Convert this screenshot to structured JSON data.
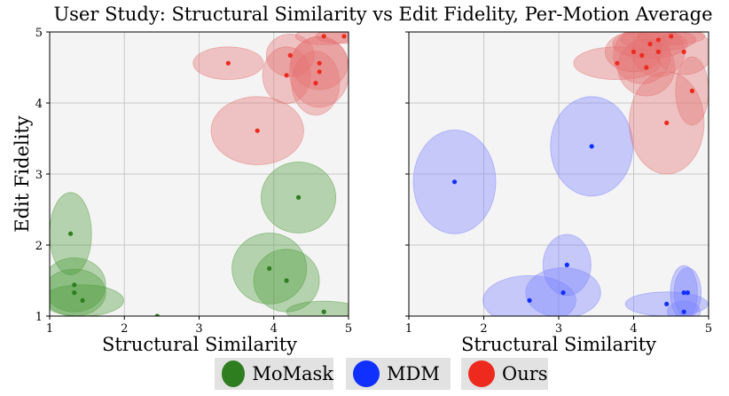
{
  "chart_data": {
    "type": "scatter",
    "title": "User Study: Structural Similarity vs Edit Fidelity, Per-Motion Average",
    "xlabel": "Structural Similarity",
    "ylabel": "Edit Fidelity",
    "xlim": [
      1,
      5
    ],
    "ylim": [
      1,
      5
    ],
    "xticks": [
      "1",
      "2",
      "3",
      "4",
      "5"
    ],
    "yticks": [
      "1",
      "2",
      "3",
      "4",
      "5"
    ],
    "grid": true,
    "legend_position": "bottom",
    "legend": [
      {
        "name": "MoMask",
        "color": "#2e7d1f"
      },
      {
        "name": "MDM",
        "color": "#1030ff"
      },
      {
        "name": "Ours",
        "color": "#ee2a1e"
      }
    ],
    "panels": [
      {
        "series": [
          {
            "name": "MoMask",
            "color": "#2e7d1f",
            "fill": "#4d9a3a",
            "points": [
              {
                "x": 1.28,
                "y": 2.16,
                "sx": 0.28,
                "sy": 0.58
              },
              {
                "x": 1.33,
                "y": 1.44,
                "sx": 0.42,
                "sy": 0.38
              },
              {
                "x": 1.33,
                "y": 1.33,
                "sx": 0.42,
                "sy": 0.33
              },
              {
                "x": 1.44,
                "y": 1.22,
                "sx": 0.55,
                "sy": 0.22
              },
              {
                "x": 2.44,
                "y": 1.0,
                "sx": 0.0,
                "sy": 0.0
              },
              {
                "x": 3.94,
                "y": 1.67,
                "sx": 0.5,
                "sy": 0.5
              },
              {
                "x": 4.17,
                "y": 1.5,
                "sx": 0.44,
                "sy": 0.44
              },
              {
                "x": 4.33,
                "y": 2.67,
                "sx": 0.5,
                "sy": 0.5
              },
              {
                "x": 4.67,
                "y": 1.06,
                "sx": 0.5,
                "sy": 0.15
              }
            ]
          },
          {
            "name": "Ours",
            "color": "#ee2a1e",
            "fill": "#e57070",
            "points": [
              {
                "x": 3.39,
                "y": 4.56,
                "sx": 0.47,
                "sy": 0.23
              },
              {
                "x": 3.78,
                "y": 3.61,
                "sx": 0.62,
                "sy": 0.48
              },
              {
                "x": 4.22,
                "y": 4.67,
                "sx": 0.32,
                "sy": 0.3
              },
              {
                "x": 4.17,
                "y": 4.39,
                "sx": 0.32,
                "sy": 0.4
              },
              {
                "x": 4.56,
                "y": 4.28,
                "sx": 0.32,
                "sy": 0.45
              },
              {
                "x": 4.61,
                "y": 4.56,
                "sx": 0.38,
                "sy": 0.37
              },
              {
                "x": 4.61,
                "y": 4.44,
                "sx": 0.4,
                "sy": 0.5
              },
              {
                "x": 4.67,
                "y": 4.94,
                "sx": 0.38,
                "sy": 0.12
              },
              {
                "x": 4.94,
                "y": 4.94,
                "sx": 0.38,
                "sy": 0.1
              }
            ]
          }
        ]
      },
      {
        "series": [
          {
            "name": "MDM",
            "color": "#1030ff",
            "fill": "#7a82ff",
            "points": [
              {
                "x": 1.61,
                "y": 2.89,
                "sx": 0.55,
                "sy": 0.73
              },
              {
                "x": 3.44,
                "y": 3.39,
                "sx": 0.55,
                "sy": 0.7
              },
              {
                "x": 3.11,
                "y": 1.72,
                "sx": 0.32,
                "sy": 0.43
              },
              {
                "x": 2.61,
                "y": 1.22,
                "sx": 0.62,
                "sy": 0.35
              },
              {
                "x": 3.06,
                "y": 1.33,
                "sx": 0.5,
                "sy": 0.35
              },
              {
                "x": 4.44,
                "y": 1.17,
                "sx": 0.55,
                "sy": 0.17
              },
              {
                "x": 4.67,
                "y": 1.33,
                "sx": 0.18,
                "sy": 0.38
              },
              {
                "x": 4.72,
                "y": 1.33,
                "sx": 0.18,
                "sy": 0.35
              },
              {
                "x": 4.67,
                "y": 1.06,
                "sx": 0.22,
                "sy": 0.15
              }
            ]
          },
          {
            "name": "Ours",
            "color": "#ee2a1e",
            "fill": "#e57070",
            "points": [
              {
                "x": 3.78,
                "y": 4.56,
                "sx": 0.58,
                "sy": 0.23
              },
              {
                "x": 4.0,
                "y": 4.72,
                "sx": 0.38,
                "sy": 0.28
              },
              {
                "x": 4.11,
                "y": 4.67,
                "sx": 0.38,
                "sy": 0.4
              },
              {
                "x": 4.17,
                "y": 4.5,
                "sx": 0.38,
                "sy": 0.4
              },
              {
                "x": 4.22,
                "y": 4.83,
                "sx": 0.5,
                "sy": 0.2
              },
              {
                "x": 4.33,
                "y": 4.89,
                "sx": 0.5,
                "sy": 0.15
              },
              {
                "x": 4.5,
                "y": 4.94,
                "sx": 0.45,
                "sy": 0.12
              },
              {
                "x": 4.33,
                "y": 4.72,
                "sx": 0.35,
                "sy": 0.35
              },
              {
                "x": 4.67,
                "y": 4.72,
                "sx": 0.38,
                "sy": 0.32
              },
              {
                "x": 4.44,
                "y": 3.72,
                "sx": 0.5,
                "sy": 0.72
              },
              {
                "x": 4.78,
                "y": 4.17,
                "sx": 0.22,
                "sy": 0.48
              }
            ]
          }
        ]
      }
    ]
  }
}
